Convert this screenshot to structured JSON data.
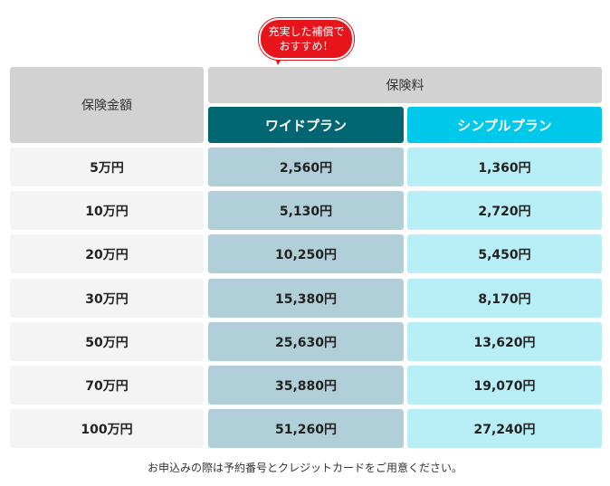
{
  "badge": {
    "line1": "充実した補償で",
    "line2": "おすすめ！"
  },
  "table": {
    "header_amount": "保険金額",
    "header_premium": "保険料",
    "plan_wide": "ワイドプラン",
    "plan_simple": "シンプルプラン",
    "rows": [
      {
        "amount": "5万円",
        "wide": "2,560円",
        "simple": "1,360円"
      },
      {
        "amount": "10万円",
        "wide": "5,130円",
        "simple": "2,720円"
      },
      {
        "amount": "20万円",
        "wide": "10,250円",
        "simple": "5,450円"
      },
      {
        "amount": "30万円",
        "wide": "15,380円",
        "simple": "8,170円"
      },
      {
        "amount": "50万円",
        "wide": "25,630円",
        "simple": "13,620円"
      },
      {
        "amount": "70万円",
        "wide": "35,880円",
        "simple": "19,070円"
      },
      {
        "amount": "100万円",
        "wide": "51,260円",
        "simple": "27,240円"
      }
    ]
  },
  "note": "お申込みの際は予約番号とクレジットカードをご用意ください。",
  "colors": {
    "wide_header": "#006671",
    "simple_header": "#00c8ea",
    "badge_red": "#e8141b"
  }
}
